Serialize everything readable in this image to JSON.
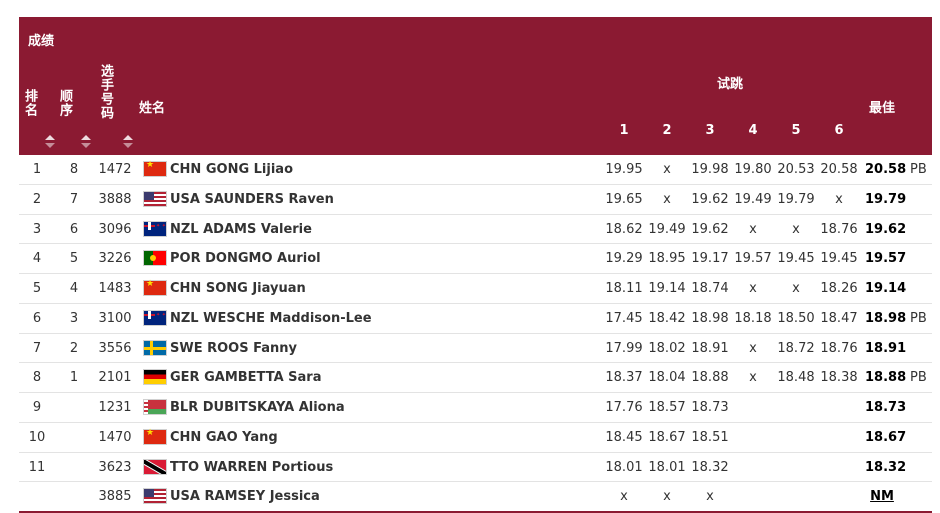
{
  "header": {
    "title": "成绩",
    "rank": "排名",
    "order": "顺序",
    "bib": "选手号码",
    "name": "姓名",
    "trials": "试跳",
    "trial_numbers": [
      "1",
      "2",
      "3",
      "4",
      "5",
      "6"
    ],
    "best": "最佳"
  },
  "rows": [
    {
      "rank": "1",
      "order": "8",
      "bib": "1472",
      "flag": "china",
      "country": "CHN",
      "name": "GONG Lijiao",
      "t": [
        "19.95",
        "x",
        "19.98",
        "19.80",
        "20.53",
        "20.58"
      ],
      "best": "20.58",
      "pb": "PB"
    },
    {
      "rank": "2",
      "order": "7",
      "bib": "3888",
      "flag": "usa",
      "country": "USA",
      "name": "SAUNDERS Raven",
      "t": [
        "19.65",
        "x",
        "19.62",
        "19.49",
        "19.79",
        "x"
      ],
      "best": "19.79",
      "pb": ""
    },
    {
      "rank": "3",
      "order": "6",
      "bib": "3096",
      "flag": "nzl",
      "country": "NZL",
      "name": "ADAMS Valerie",
      "t": [
        "18.62",
        "19.49",
        "19.62",
        "x",
        "x",
        "18.76"
      ],
      "best": "19.62",
      "pb": ""
    },
    {
      "rank": "4",
      "order": "5",
      "bib": "3226",
      "flag": "portugal",
      "country": "POR",
      "name": "DONGMO Auriol",
      "t": [
        "19.29",
        "18.95",
        "19.17",
        "19.57",
        "19.45",
        "19.45"
      ],
      "best": "19.57",
      "pb": ""
    },
    {
      "rank": "5",
      "order": "4",
      "bib": "1483",
      "flag": "china",
      "country": "CHN",
      "name": "SONG Jiayuan",
      "t": [
        "18.11",
        "19.14",
        "18.74",
        "x",
        "x",
        "18.26"
      ],
      "best": "19.14",
      "pb": ""
    },
    {
      "rank": "6",
      "order": "3",
      "bib": "3100",
      "flag": "nzl",
      "country": "NZL",
      "name": "WESCHE Maddison-Lee",
      "t": [
        "17.45",
        "18.42",
        "18.98",
        "18.18",
        "18.50",
        "18.47"
      ],
      "best": "18.98",
      "pb": "PB"
    },
    {
      "rank": "7",
      "order": "2",
      "bib": "3556",
      "flag": "sweden",
      "country": "SWE",
      "name": "ROOS Fanny",
      "t": [
        "17.99",
        "18.02",
        "18.91",
        "x",
        "18.72",
        "18.76"
      ],
      "best": "18.91",
      "pb": ""
    },
    {
      "rank": "8",
      "order": "1",
      "bib": "2101",
      "flag": "germany",
      "country": "GER",
      "name": "GAMBETTA Sara",
      "t": [
        "18.37",
        "18.04",
        "18.88",
        "x",
        "18.48",
        "18.38"
      ],
      "best": "18.88",
      "pb": "PB"
    },
    {
      "rank": "9",
      "order": "",
      "bib": "1231",
      "flag": "belarus",
      "country": "BLR",
      "name": "DUBITSKAYA Aliona",
      "t": [
        "17.76",
        "18.57",
        "18.73",
        "",
        "",
        ""
      ],
      "best": "18.73",
      "pb": ""
    },
    {
      "rank": "10",
      "order": "",
      "bib": "1470",
      "flag": "china",
      "country": "CHN",
      "name": "GAO Yang",
      "t": [
        "18.45",
        "18.67",
        "18.51",
        "",
        "",
        ""
      ],
      "best": "18.67",
      "pb": ""
    },
    {
      "rank": "11",
      "order": "",
      "bib": "3623",
      "flag": "tto",
      "country": "TTO",
      "name": "WARREN Portious",
      "t": [
        "18.01",
        "18.01",
        "18.32",
        "",
        "",
        ""
      ],
      "best": "18.32",
      "pb": ""
    },
    {
      "rank": "",
      "order": "",
      "bib": "3885",
      "flag": "usa",
      "country": "USA",
      "name": "RAMSEY Jessica",
      "t": [
        "x",
        "x",
        "x",
        "",
        "",
        ""
      ],
      "best": "NM",
      "pb": ""
    }
  ]
}
